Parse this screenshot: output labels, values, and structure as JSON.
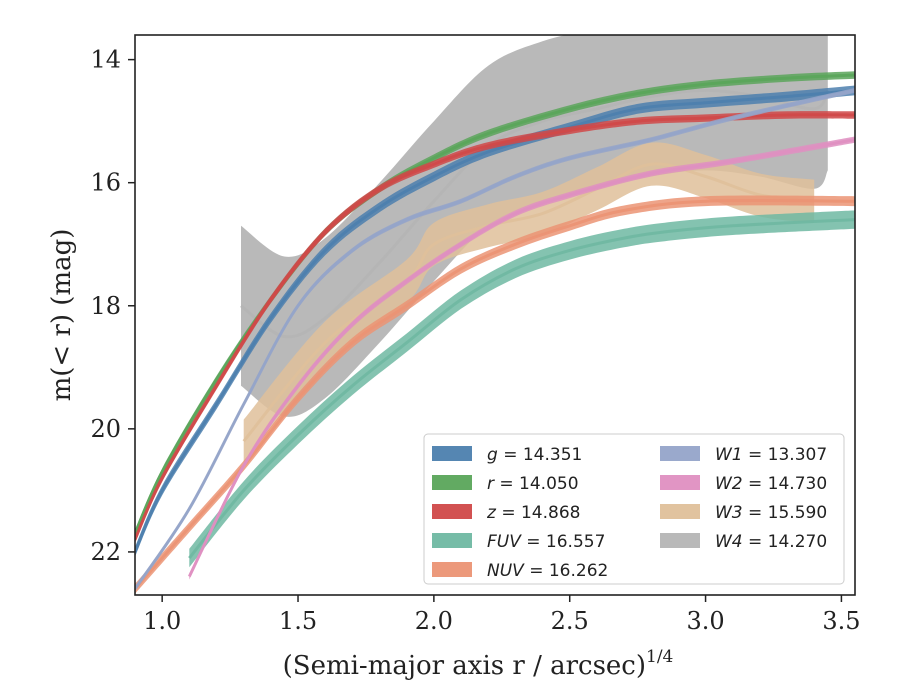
{
  "chart_data": {
    "type": "line",
    "xlabel": "(Semi-major axis r / arcsec)",
    "xlabel_exponent": "1/4",
    "ylabel": "m(< r) (mag)",
    "xlim": [
      0.9,
      3.55
    ],
    "ylim": [
      22.7,
      13.6
    ],
    "y_inverted": true,
    "grid": false,
    "x_ticks": [
      "1.0",
      "1.5",
      "2.0",
      "2.5",
      "3.0",
      "3.5"
    ],
    "x_tick_values": [
      1.0,
      1.5,
      2.0,
      2.5,
      3.0,
      3.5
    ],
    "y_ticks": [
      "14",
      "16",
      "18",
      "20",
      "22"
    ],
    "y_tick_values": [
      14,
      16,
      18,
      20,
      22
    ],
    "legend_position": "lower-right",
    "series": [
      {
        "name": "g",
        "total": "14.351",
        "color": "#4c7fae",
        "x": [
          0.9,
          1.0,
          1.2,
          1.4,
          1.6,
          1.8,
          2.0,
          2.2,
          2.5,
          2.75,
          3.0,
          3.3,
          3.55
        ],
        "y": [
          22.0,
          21.0,
          19.6,
          18.2,
          17.1,
          16.4,
          15.9,
          15.5,
          15.1,
          14.8,
          14.7,
          14.6,
          14.5
        ],
        "band": 0.08
      },
      {
        "name": "r",
        "total": "14.050",
        "color": "#5aa55a",
        "x": [
          0.9,
          1.0,
          1.2,
          1.4,
          1.6,
          1.8,
          2.0,
          2.2,
          2.5,
          2.75,
          3.0,
          3.3,
          3.55
        ],
        "y": [
          21.7,
          20.7,
          19.2,
          17.9,
          16.8,
          16.1,
          15.6,
          15.2,
          14.8,
          14.55,
          14.4,
          14.3,
          14.25
        ],
        "band": 0.06
      },
      {
        "name": "z",
        "total": "14.868",
        "color": "#d04848",
        "x": [
          0.9,
          1.0,
          1.2,
          1.4,
          1.6,
          1.8,
          2.0,
          2.2,
          2.5,
          2.75,
          3.0,
          3.3,
          3.55
        ],
        "y": [
          21.8,
          20.8,
          19.3,
          17.9,
          16.8,
          16.1,
          15.7,
          15.4,
          15.15,
          15.0,
          14.95,
          14.9,
          14.9
        ],
        "band": 0.06
      },
      {
        "name": "FUV",
        "total": "16.557",
        "color": "#6fb8a2",
        "x": [
          1.1,
          1.3,
          1.5,
          1.7,
          1.9,
          2.1,
          2.3,
          2.5,
          2.7,
          2.85,
          3.1,
          3.55
        ],
        "y": [
          22.1,
          21.0,
          20.1,
          19.3,
          18.6,
          17.9,
          17.4,
          17.1,
          16.9,
          16.8,
          16.7,
          16.6
        ],
        "band": 0.15
      },
      {
        "name": "NUV",
        "total": "16.262",
        "color": "#eb9474",
        "x": [
          0.9,
          1.1,
          1.3,
          1.5,
          1.7,
          1.9,
          2.1,
          2.3,
          2.5,
          2.7,
          3.0,
          3.55
        ],
        "y": [
          22.6,
          21.6,
          20.6,
          19.5,
          18.6,
          18.0,
          17.4,
          17.0,
          16.7,
          16.45,
          16.3,
          16.3
        ],
        "band": 0.08
      },
      {
        "name": "W1",
        "total": "13.307",
        "color": "#95a4c9",
        "x": [
          0.9,
          1.1,
          1.3,
          1.5,
          1.7,
          1.9,
          2.1,
          2.3,
          2.5,
          2.8,
          3.1,
          3.55
        ],
        "y": [
          22.6,
          21.3,
          19.6,
          18.0,
          17.1,
          16.6,
          16.3,
          15.9,
          15.6,
          15.3,
          14.95,
          14.5
        ],
        "band": 0.04
      },
      {
        "name": "W2",
        "total": "14.730",
        "color": "#df8fc1",
        "x": [
          1.1,
          1.3,
          1.5,
          1.7,
          1.9,
          2.1,
          2.3,
          2.5,
          2.8,
          3.1,
          3.55
        ],
        "y": [
          22.4,
          20.6,
          19.3,
          18.3,
          17.6,
          17.0,
          16.5,
          16.2,
          15.85,
          15.65,
          15.3
        ],
        "band": 0.05
      },
      {
        "name": "W3",
        "total": "15.590",
        "color": "#dfc09a",
        "x": [
          1.3,
          1.6,
          1.9,
          2.0,
          2.2,
          2.4,
          2.6,
          2.8,
          3.0,
          3.2,
          3.4
        ],
        "y": [
          20.2,
          18.6,
          17.6,
          17.0,
          16.7,
          16.5,
          16.1,
          15.7,
          15.9,
          16.2,
          16.3
        ],
        "band": 0.35
      },
      {
        "name": "W4",
        "total": "14.270",
        "color": "#b5b5b5",
        "x": [
          1.29,
          1.45,
          1.6,
          1.8,
          2.0,
          2.2,
          2.4,
          2.6,
          2.8,
          3.0,
          3.2,
          3.4,
          3.45
        ],
        "y": [
          18.0,
          18.5,
          18.2,
          17.3,
          16.3,
          15.4,
          15.0,
          14.8,
          14.6,
          14.5,
          14.6,
          14.8,
          14.5
        ],
        "band": 1.3
      }
    ]
  }
}
